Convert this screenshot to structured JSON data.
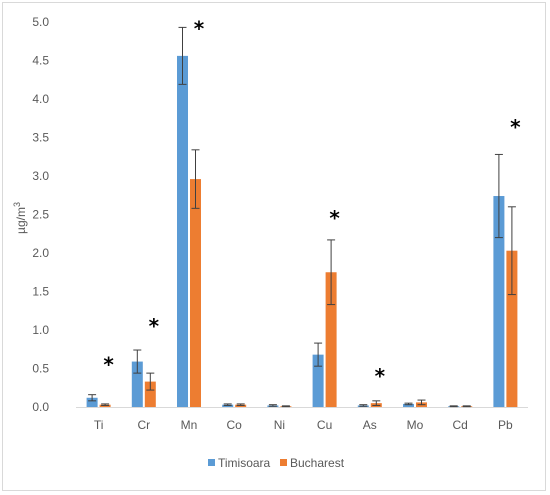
{
  "chart_data": {
    "type": "bar",
    "title": "",
    "xlabel": "",
    "ylabel": "µg/m",
    "ylabel_superscript": "3",
    "ylim": [
      0,
      5
    ],
    "yticks": [
      "0.0",
      "0.5",
      "1.0",
      "1.5",
      "2.0",
      "2.5",
      "3.0",
      "3.5",
      "4.0",
      "4.5",
      "5.0"
    ],
    "categories": [
      "Ti",
      "Cr",
      "Mn",
      "Co",
      "Ni",
      "Cu",
      "As",
      "Mo",
      "Cd",
      "Pb"
    ],
    "series": [
      {
        "name": "Timisoara",
        "color": "#5b9bd5",
        "values": [
          0.12,
          0.59,
          4.56,
          0.03,
          0.02,
          0.68,
          0.02,
          0.04,
          0.01,
          2.74
        ],
        "error": [
          0.04,
          0.15,
          0.37,
          0.01,
          0.01,
          0.15,
          0.01,
          0.01,
          0.005,
          0.54
        ]
      },
      {
        "name": "Bucharest",
        "color": "#ed7d31",
        "values": [
          0.03,
          0.33,
          2.96,
          0.03,
          0.01,
          1.75,
          0.05,
          0.06,
          0.01,
          2.03
        ],
        "error": [
          0.01,
          0.11,
          0.38,
          0.01,
          0.005,
          0.42,
          0.03,
          0.03,
          0.005,
          0.57
        ]
      }
    ],
    "annotations": [
      {
        "category": "Ti",
        "text": "*",
        "y": 0.62
      },
      {
        "category": "Cr",
        "text": "*",
        "y": 1.12
      },
      {
        "category": "Mn",
        "text": "*",
        "y": 4.98
      },
      {
        "category": "Cu",
        "text": "*",
        "y": 2.52
      },
      {
        "category": "As",
        "text": "*",
        "y": 0.47
      },
      {
        "category": "Pb",
        "text": "*",
        "y": 3.7
      }
    ],
    "grid": false,
    "legend_position": "bottom"
  }
}
